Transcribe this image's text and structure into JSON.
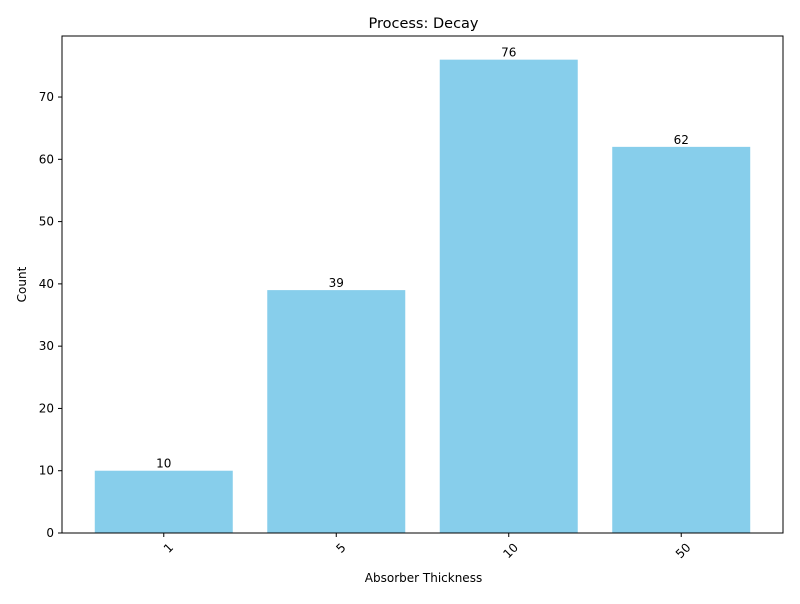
{
  "chart_data": {
    "type": "bar",
    "title": "Process: Decay",
    "xlabel": "Absorber Thickness",
    "ylabel": "Count",
    "categories": [
      "1",
      "5",
      "10",
      "50"
    ],
    "values": [
      10,
      39,
      76,
      62
    ],
    "data_labels": [
      "10",
      "39",
      "76",
      "62"
    ],
    "yticks": [
      0,
      10,
      20,
      30,
      40,
      50,
      60,
      70
    ],
    "ylim": [
      0,
      79.8
    ],
    "grid": false,
    "legend": "none",
    "x_tick_rotation": 45,
    "bar_color": "#87CEEB"
  }
}
